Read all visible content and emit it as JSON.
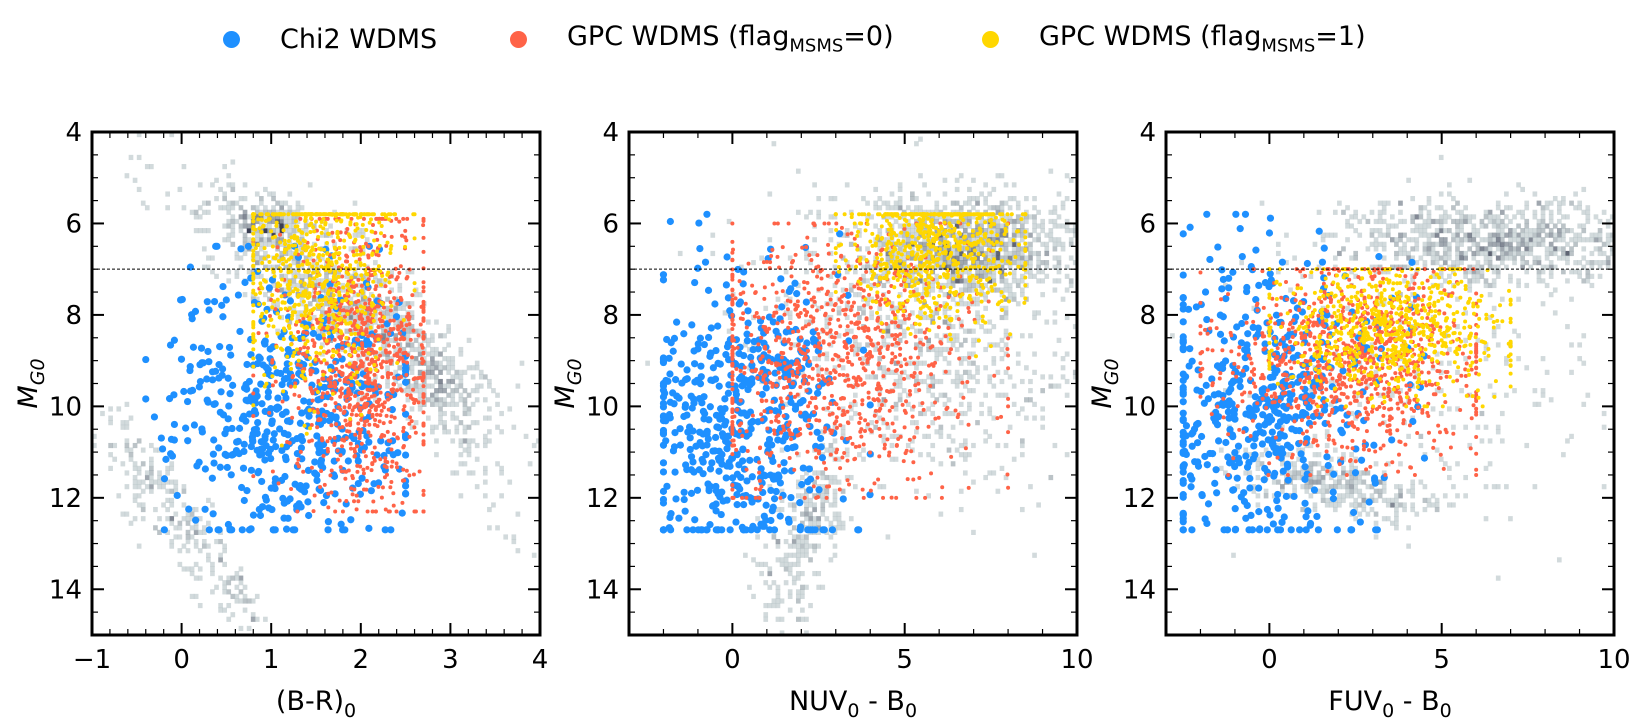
{
  "legend": [
    {
      "label": "Chi2 WDMS",
      "sub": "",
      "tail": "",
      "color": "#1e90ff"
    },
    {
      "label": "GPC WDMS (flag",
      "sub": "MSMS",
      "tail": "=0)",
      "color": "#ff6347"
    },
    {
      "label": "GPC WDMS (flag",
      "sub": "MSMS",
      "tail": "=1)",
      "color": "#ffd700"
    }
  ],
  "chart_data": [
    {
      "type": "scatter",
      "xlabel": "(B-R)",
      "xlabel_sub": "0",
      "xlabel_tail": "",
      "ylabel": "M",
      "ylabel_sub": "G0",
      "xlim": [
        -1,
        4
      ],
      "ylim": [
        15,
        4
      ],
      "xticks": [
        "−1",
        "0",
        "1",
        "2",
        "3",
        "4"
      ],
      "xtick_values": [
        -1,
        0,
        1,
        2,
        3,
        4
      ],
      "yticks": [
        "4",
        "6",
        "8",
        "10",
        "12",
        "14"
      ],
      "ytick_values": [
        4,
        6,
        8,
        10,
        12,
        14
      ],
      "reference_line_y": 7,
      "background": "2D density histogram of sample stars (grey)",
      "series": [
        {
          "name": "Chi2 WDMS",
          "color": "#1e90ff",
          "x_range": [
            -0.4,
            2.5
          ],
          "y_range": [
            6.5,
            12.7
          ],
          "centroid": [
            1.2,
            10.2
          ]
        },
        {
          "name": "GPC WDMS (flagMSMS=0)",
          "color": "#ff6347",
          "x_range": [
            0.8,
            2.7
          ],
          "y_range": [
            5.9,
            12.3
          ],
          "centroid": [
            2.0,
            9.0
          ]
        },
        {
          "name": "GPC WDMS (flagMSMS=1)",
          "color": "#ffd700",
          "x_range": [
            0.8,
            2.6
          ],
          "y_range": [
            5.8,
            11.2
          ],
          "centroid": [
            1.5,
            7.0
          ]
        }
      ]
    },
    {
      "type": "scatter",
      "xlabel": "NUV",
      "xlabel_sub": "0",
      "xlabel_tail": " - B",
      "xlabel_tail_sub": "0",
      "ylabel": "M",
      "ylabel_sub": "G0",
      "xlim": [
        -3,
        10
      ],
      "ylim": [
        15,
        4
      ],
      "xticks": [
        "0",
        "5",
        "10"
      ],
      "xtick_values": [
        0,
        5,
        10
      ],
      "yticks": [
        "4",
        "6",
        "8",
        "10",
        "12",
        "14"
      ],
      "ytick_values": [
        4,
        6,
        8,
        10,
        12,
        14
      ],
      "reference_line_y": 7,
      "background": "2D density histogram of sample stars (grey)",
      "series": [
        {
          "name": "Chi2 WDMS",
          "color": "#1e90ff",
          "x_range": [
            -2,
            4
          ],
          "y_range": [
            5.8,
            12.7
          ],
          "centroid": [
            0.3,
            10.2
          ]
        },
        {
          "name": "GPC WDMS (flagMSMS=0)",
          "color": "#ff6347",
          "x_range": [
            0,
            8
          ],
          "y_range": [
            6.0,
            12.0
          ],
          "centroid": [
            3.0,
            9.0
          ]
        },
        {
          "name": "GPC WDMS (flagMSMS=1)",
          "color": "#ffd700",
          "x_range": [
            3,
            8.5
          ],
          "y_range": [
            5.8,
            9.5
          ],
          "centroid": [
            6.0,
            6.5
          ]
        }
      ]
    },
    {
      "type": "scatter",
      "xlabel": "FUV",
      "xlabel_sub": "0",
      "xlabel_tail": " - B",
      "xlabel_tail_sub": "0",
      "ylabel": "M",
      "ylabel_sub": "G0",
      "xlim": [
        -3,
        10
      ],
      "ylim": [
        15,
        4
      ],
      "xticks": [
        "0",
        "5",
        "10"
      ],
      "xtick_values": [
        0,
        5,
        10
      ],
      "yticks": [
        "4",
        "6",
        "8",
        "10",
        "12",
        "14"
      ],
      "ytick_values": [
        4,
        6,
        8,
        10,
        12,
        14
      ],
      "reference_line_y": 7,
      "background": "2D density histogram of sample stars (grey)",
      "series": [
        {
          "name": "Chi2 WDMS",
          "color": "#1e90ff",
          "x_range": [
            -2.5,
            4.5
          ],
          "y_range": [
            5.8,
            12.7
          ],
          "centroid": [
            0.0,
            10.0
          ]
        },
        {
          "name": "GPC WDMS (flagMSMS=0)",
          "color": "#ff6347",
          "x_range": [
            -2,
            6
          ],
          "y_range": [
            7.0,
            11.5
          ],
          "centroid": [
            2.5,
            9.0
          ]
        },
        {
          "name": "GPC WDMS (flagMSMS=1)",
          "color": "#ffd700",
          "x_range": [
            0,
            7
          ],
          "y_range": [
            7.0,
            10.0
          ],
          "centroid": [
            3.5,
            8.3
          ]
        }
      ]
    }
  ]
}
